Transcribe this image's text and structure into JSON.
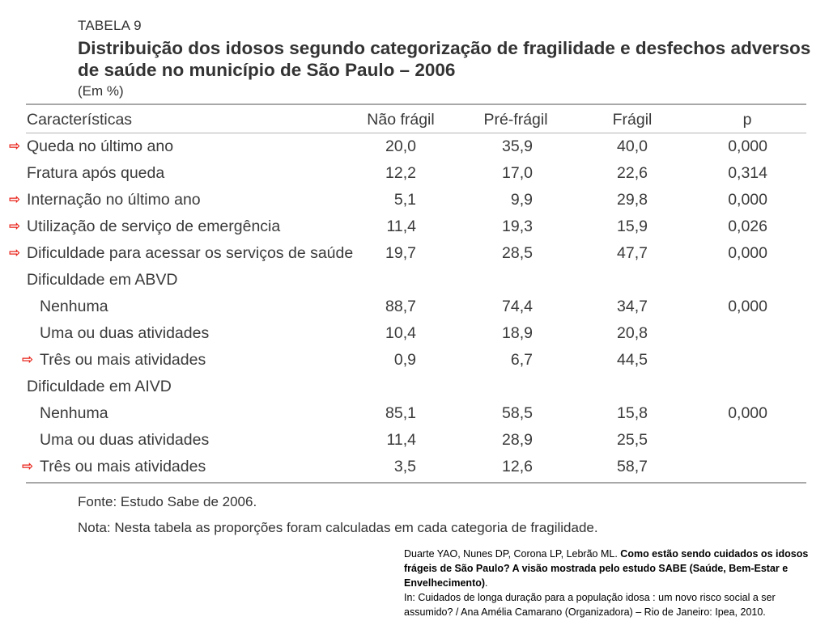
{
  "header": {
    "table_label": "TABELA 9",
    "title": "Distribuição dos idosos segundo categorização de fragilidade e desfechos adversos de saúde no município de São Paulo – 2006",
    "unit": "(Em %)"
  },
  "columns": {
    "label": "Características",
    "nao_fragil": "Não frágil",
    "pre_fragil": "Pré-frágil",
    "fragil": "Frágil",
    "p": "p"
  },
  "arrow_glyph": "⇨",
  "colors": {
    "arrow": "#e8231a",
    "rule": "#a8a8a8",
    "text": "#3a3a3a"
  },
  "rows": [
    {
      "label": "Queda no último ano",
      "nao_fragil": "20,0",
      "pre_fragil": "35,9",
      "fragil": "40,0",
      "p": "0,000",
      "arrow": true,
      "indent": false
    },
    {
      "label": "Fratura após queda",
      "nao_fragil": "12,2",
      "pre_fragil": "17,0",
      "fragil": "22,6",
      "p": "0,314",
      "arrow": false,
      "indent": false
    },
    {
      "label": "Internação no último ano",
      "nao_fragil": "5,1",
      "pre_fragil": "9,9",
      "fragil": "29,8",
      "p": "0,000",
      "arrow": true,
      "indent": false
    },
    {
      "label": "Utilização de serviço de emergência",
      "nao_fragil": "11,4",
      "pre_fragil": "19,3",
      "fragil": "15,9",
      "p": "0,026",
      "arrow": true,
      "indent": false
    },
    {
      "label": "Dificuldade para acessar os serviços de saúde",
      "nao_fragil": "19,7",
      "pre_fragil": "28,5",
      "fragil": "47,7",
      "p": "0,000",
      "arrow": true,
      "indent": false
    },
    {
      "label": "Dificuldade em ABVD",
      "nao_fragil": "",
      "pre_fragil": "",
      "fragil": "",
      "p": "",
      "arrow": false,
      "indent": false
    },
    {
      "label": "Nenhuma",
      "nao_fragil": "88,7",
      "pre_fragil": "74,4",
      "fragil": "34,7",
      "p": "0,000",
      "arrow": false,
      "indent": true
    },
    {
      "label": "Uma ou duas atividades",
      "nao_fragil": "10,4",
      "pre_fragil": "18,9",
      "fragil": "20,8",
      "p": "",
      "arrow": false,
      "indent": true
    },
    {
      "label": "Três ou mais atividades",
      "nao_fragil": "0,9",
      "pre_fragil": "6,7",
      "fragil": "44,5",
      "p": "",
      "arrow": true,
      "indent": true
    },
    {
      "label": "Dificuldade em AIVD",
      "nao_fragil": "",
      "pre_fragil": "",
      "fragil": "",
      "p": "",
      "arrow": false,
      "indent": false
    },
    {
      "label": "Nenhuma",
      "nao_fragil": "85,1",
      "pre_fragil": "58,5",
      "fragil": "15,8",
      "p": "0,000",
      "arrow": false,
      "indent": true
    },
    {
      "label": "Uma ou duas atividades",
      "nao_fragil": "11,4",
      "pre_fragil": "28,9",
      "fragil": "25,5",
      "p": "",
      "arrow": false,
      "indent": true
    },
    {
      "label": "Três ou mais atividades",
      "nao_fragil": "3,5",
      "pre_fragil": "12,6",
      "fragil": "58,7",
      "p": "",
      "arrow": true,
      "indent": true
    }
  ],
  "footer": {
    "fonte": "Fonte: Estudo Sabe de 2006.",
    "nota": "Nota: Nesta tabela as proporções foram calculadas em cada categoria de fragilidade."
  },
  "citation": {
    "authors": "Duarte YAO, Nunes DP, Corona LP, Lebrão ML. ",
    "article_title": "Como estão sendo cuidados os idosos frágeis de São Paulo? A visão mostrada pelo estudo SABE (Saúde, Bem-Estar e Envelhecimento)",
    "period": ".",
    "source": "In: Cuidados de longa duração para a população idosa : um novo risco social a ser assumido? / Ana Amélia Camarano (Organizadora) – Rio de Janeiro: Ipea, 2010."
  }
}
